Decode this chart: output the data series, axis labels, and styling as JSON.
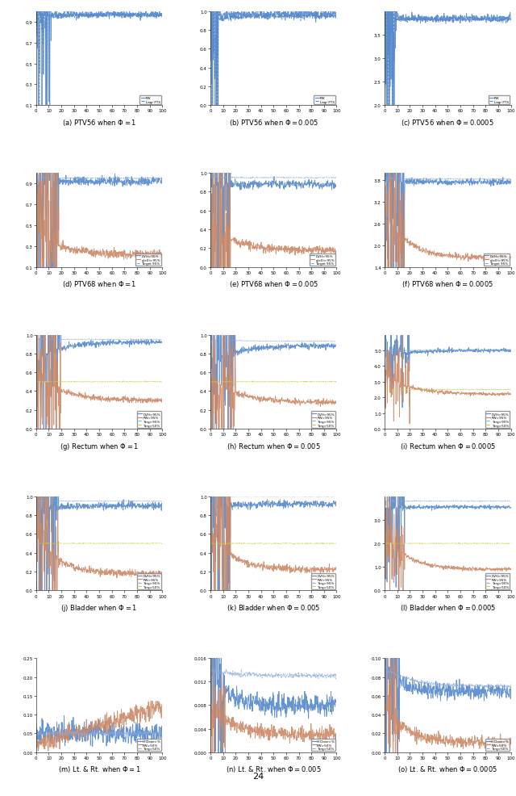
{
  "figure_size": [
    6.4,
    9.87
  ],
  "dpi": 100,
  "row_titles": [
    "PTV56",
    "PTV68",
    "Rectum",
    "Bladder",
    "Lt. & Rt."
  ],
  "col_phi": [
    "1",
    "0.005",
    "0.0005"
  ],
  "subplot_labels": [
    "(a)",
    "(b)",
    "(c)",
    "(d)",
    "(e)",
    "(f)",
    "(g)",
    "(h)",
    "(i)",
    "(j)",
    "(k)",
    "(l)",
    "(m)",
    "(n)",
    "(o)"
  ],
  "colors": {
    "blue": "#5588cc",
    "orange": "#cc8866",
    "light_blue": "#88aadd",
    "yellow": "#cccc44"
  },
  "page_number": "24"
}
